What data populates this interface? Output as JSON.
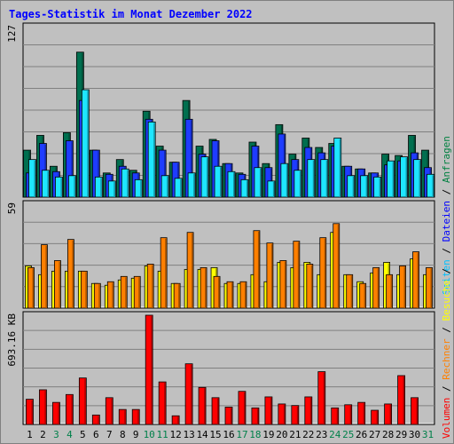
{
  "chart_data": {
    "type": "bar",
    "title": "Tages-Statistik im Monat Dezember 2022",
    "categories": [
      "1",
      "2",
      "3",
      "4",
      "5",
      "6",
      "7",
      "8",
      "9",
      "10",
      "11",
      "12",
      "13",
      "14",
      "15",
      "16",
      "17",
      "18",
      "19",
      "20",
      "21",
      "22",
      "23",
      "24",
      "25",
      "26",
      "27",
      "28",
      "29",
      "30",
      "31"
    ],
    "weekend_days": [
      "3",
      "4",
      "10",
      "11",
      "17",
      "18",
      "24",
      "25",
      "31"
    ],
    "panels": [
      {
        "name": "requests",
        "scale_label": "127",
        "ylim": [
          0,
          127
        ],
        "series": [
          {
            "name": "Anfragen",
            "color": "#006f4f",
            "values": [
              35,
              46,
              23,
              48,
              108,
              35,
              18,
              28,
              20,
              64,
              38,
              26,
              72,
              38,
              43,
              25,
              18,
              41,
              25,
              54,
              32,
              44,
              37,
              40,
              23,
              21,
              18,
              32,
              31,
              46,
              35
            ]
          },
          {
            "name": "Dateien",
            "color": "#1e3cff",
            "values": [
              18,
              40,
              19,
              42,
              72,
              35,
              17,
              23,
              18,
              58,
              35,
              26,
              58,
              32,
              42,
              25,
              17,
              38,
              22,
              47,
              28,
              37,
              33,
              38,
              23,
              21,
              18,
              24,
              27,
              33,
              22
            ]
          },
          {
            "name": "Seiten",
            "color": "#1ee6ff",
            "values": [
              28,
              20,
              15,
              16,
              80,
              15,
              12,
              21,
              13,
              56,
              16,
              14,
              18,
              30,
              23,
              19,
              13,
              22,
              12,
              25,
              20,
              28,
              28,
              44,
              16,
              16,
              15,
              27,
              30,
              28,
              17
            ]
          }
        ]
      },
      {
        "name": "visits",
        "scale_label": "59",
        "ylim": [
          0,
          59
        ],
        "series": [
          {
            "name": "Besuche",
            "color": "#ffff00",
            "values": [
              24,
              19,
              21,
              21,
              21,
              14,
              13,
              16,
              17,
              24,
              21,
              14,
              22,
              22,
              23,
              14,
              14,
              19,
              15,
              26,
              23,
              26,
              19,
              43,
              19,
              15,
              20,
              26,
              19,
              28,
              19
            ]
          },
          {
            "name": "Rechner",
            "color": "#ff8000",
            "values": [
              23,
              36,
              27,
              39,
              21,
              14,
              15,
              18,
              18,
              25,
              40,
              14,
              43,
              23,
              18,
              15,
              15,
              44,
              37,
              27,
              38,
              25,
              40,
              48,
              19,
              14,
              23,
              19,
              24,
              32,
              23
            ]
          }
        ]
      },
      {
        "name": "volume",
        "scale_label": "693.16 KB",
        "ylim": [
          0,
          693.16
        ],
        "series": [
          {
            "name": "Volumen",
            "color": "#ff0000",
            "values": [
              160,
              220,
              140,
              190,
              295,
              60,
              170,
              95,
              95,
              693.16,
              270,
              55,
              385,
              235,
              170,
              110,
              210,
              105,
              175,
              130,
              120,
              175,
              335,
              105,
              125,
              140,
              90,
              130,
              310,
              170,
              0
            ]
          }
        ]
      }
    ],
    "legend_right_top": [
      "Seiten",
      "/",
      "Dateien",
      "/",
      "Anfragen"
    ],
    "legend_right_bottom": [
      "Volumen",
      "/",
      "Rechner",
      "/",
      "Besuche",
      "/"
    ],
    "legend_colors": {
      "Anfragen": "#008040",
      "Dateien": "#0000ff",
      "Seiten": "#00c0ff",
      "Besuche": "#ffff00",
      "Rechner": "#ff8000",
      "Volumen": "#ff0000",
      "sep": "#000000"
    },
    "colors": {
      "background": "#c0c0c0",
      "plot_bg": "#c0c0c0",
      "title": "#0000ff",
      "weekday_label": "#000000",
      "weekend_label": "#00804a"
    }
  }
}
